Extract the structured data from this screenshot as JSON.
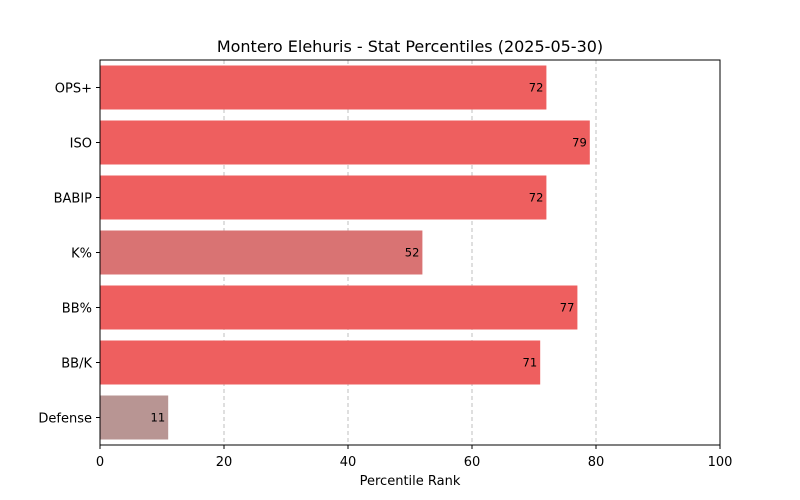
{
  "chart_data": {
    "type": "bar",
    "orientation": "horizontal",
    "title": "Montero Elehuris - Stat Percentiles (2025-05-30)",
    "xlabel": "Percentile Rank",
    "ylabel": "",
    "xlim": [
      0,
      100
    ],
    "xticks": [
      0,
      20,
      40,
      60,
      80,
      100
    ],
    "grid": "vertical dashed",
    "categories": [
      "OPS+",
      "ISO",
      "BABIP",
      "K%",
      "BB%",
      "BB/K",
      "Defense"
    ],
    "values": [
      72,
      79,
      72,
      52,
      77,
      71,
      11
    ],
    "colors": [
      "#ee5f5f",
      "#ee5f5f",
      "#ee5f5f",
      "#d97373",
      "#ee5f5f",
      "#ee5f5f",
      "#b89593"
    ]
  }
}
